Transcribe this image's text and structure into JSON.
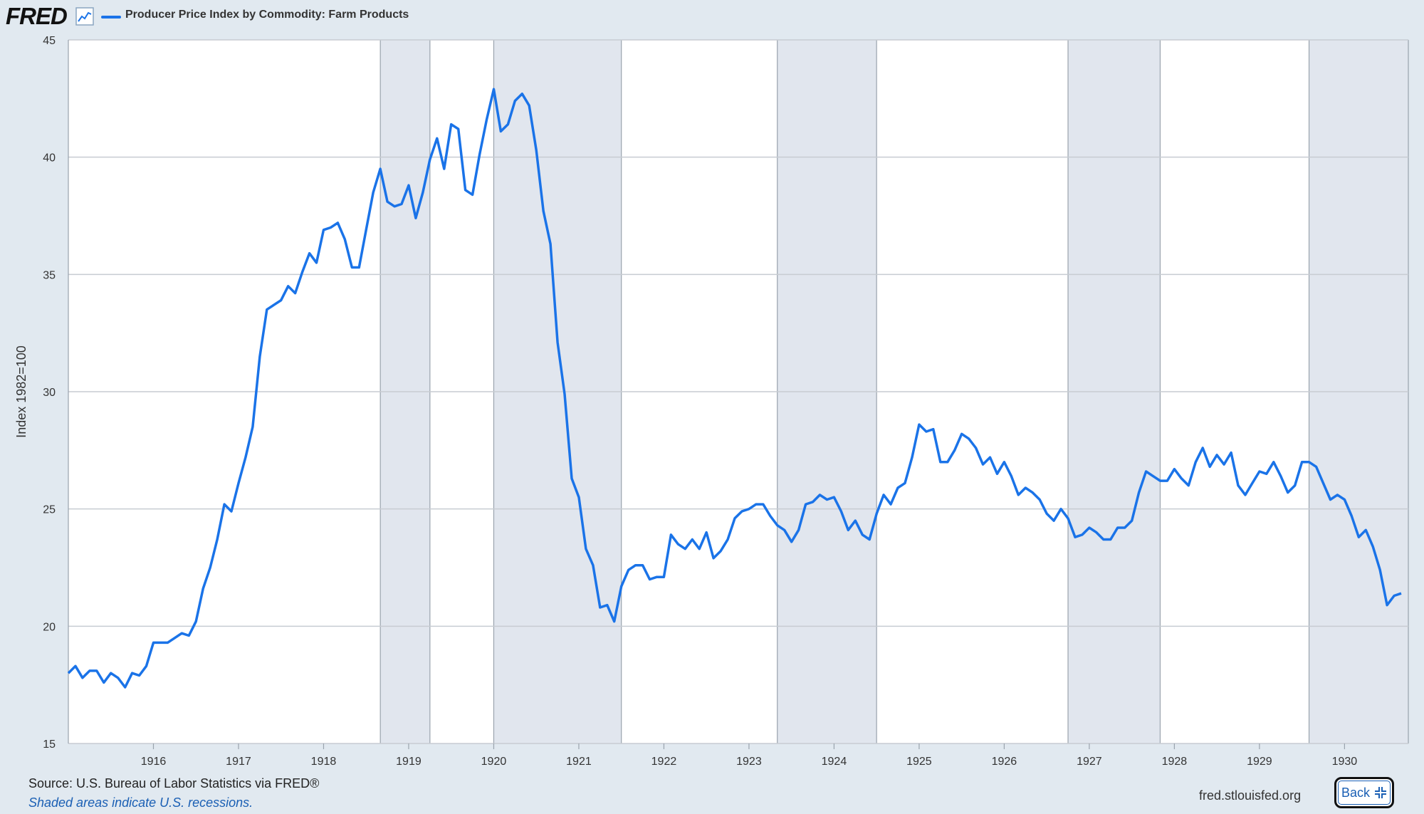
{
  "header": {
    "logo_text": "FRED",
    "series_label": "Producer Price Index by Commodity: Farm Products",
    "line_color": "#1a73e8"
  },
  "footer": {
    "source": "Source: U.S. Bureau of Labor Statistics via FRED®",
    "note": "Shaded areas indicate U.S. recessions.",
    "url": "fred.stlouisfed.org",
    "back_label": "Back"
  },
  "chart_data": {
    "type": "line",
    "title": "Producer Price Index by Commodity: Farm Products",
    "ylabel": "Index 1982=100",
    "xlabel": "",
    "ylim": [
      15,
      45
    ],
    "xlim": [
      1915.0,
      1930.75
    ],
    "y_ticks": [
      15,
      20,
      25,
      30,
      35,
      40,
      45
    ],
    "x_ticks": [
      1916,
      1917,
      1918,
      1919,
      1920,
      1921,
      1922,
      1923,
      1924,
      1925,
      1926,
      1927,
      1928,
      1929,
      1930
    ],
    "grid": "horizontal",
    "recession_shading": [
      [
        1918.667,
        1919.25
      ],
      [
        1920.0,
        1921.5
      ],
      [
        1923.333,
        1924.5
      ],
      [
        1926.75,
        1927.833
      ],
      [
        1929.583,
        1930.75
      ]
    ],
    "series": [
      {
        "name": "Producer Price Index by Commodity: Farm Products",
        "color": "#1a73e8",
        "start": "1915-01",
        "frequency": "monthly",
        "values": [
          18.0,
          18.3,
          17.8,
          18.1,
          18.1,
          17.6,
          18.0,
          17.8,
          17.4,
          18.0,
          17.9,
          18.3,
          19.3,
          19.3,
          19.3,
          19.5,
          19.7,
          19.6,
          20.2,
          21.6,
          22.5,
          23.7,
          25.2,
          24.9,
          26.1,
          27.2,
          28.5,
          31.5,
          33.5,
          33.7,
          33.9,
          34.5,
          34.2,
          35.1,
          35.9,
          35.5,
          36.9,
          37.0,
          37.2,
          36.5,
          35.3,
          35.3,
          36.9,
          38.5,
          39.5,
          38.1,
          37.9,
          38.0,
          38.8,
          37.4,
          38.5,
          39.9,
          40.8,
          39.5,
          41.4,
          41.2,
          38.6,
          38.4,
          40.1,
          41.6,
          42.9,
          41.1,
          41.4,
          42.4,
          42.7,
          42.2,
          40.3,
          37.7,
          36.3,
          32.1,
          29.9,
          26.3,
          25.5,
          23.3,
          22.6,
          20.8,
          20.9,
          20.2,
          21.7,
          22.4,
          22.6,
          22.6,
          22.0,
          22.1,
          22.1,
          23.9,
          23.5,
          23.3,
          23.7,
          23.3,
          24.0,
          22.9,
          23.2,
          23.7,
          24.6,
          24.9,
          25.0,
          25.2,
          25.2,
          24.7,
          24.3,
          24.1,
          23.6,
          24.1,
          25.2,
          25.3,
          25.6,
          25.4,
          25.5,
          24.9,
          24.1,
          24.5,
          23.9,
          23.7,
          24.8,
          25.6,
          25.2,
          25.9,
          26.1,
          27.2,
          28.6,
          28.3,
          28.4,
          27.0,
          27.0,
          27.5,
          28.2,
          28.0,
          27.6,
          26.9,
          27.2,
          26.5,
          27.0,
          26.4,
          25.6,
          25.9,
          25.7,
          25.4,
          24.8,
          24.5,
          25.0,
          24.6,
          23.8,
          23.9,
          24.2,
          24.0,
          23.7,
          23.7,
          24.2,
          24.2,
          24.5,
          25.7,
          26.6,
          26.4,
          26.2,
          26.2,
          26.7,
          26.3,
          26.0,
          27.0,
          27.6,
          26.8,
          27.3,
          26.9,
          27.4,
          26.0,
          25.6,
          26.1,
          26.6,
          26.5,
          27.0,
          26.4,
          25.7,
          26.0,
          27.0,
          27.0,
          26.8,
          26.1,
          25.4,
          25.6,
          25.4,
          24.7,
          23.8,
          24.1,
          23.4,
          22.4,
          20.9,
          21.3,
          21.4
        ]
      }
    ]
  }
}
